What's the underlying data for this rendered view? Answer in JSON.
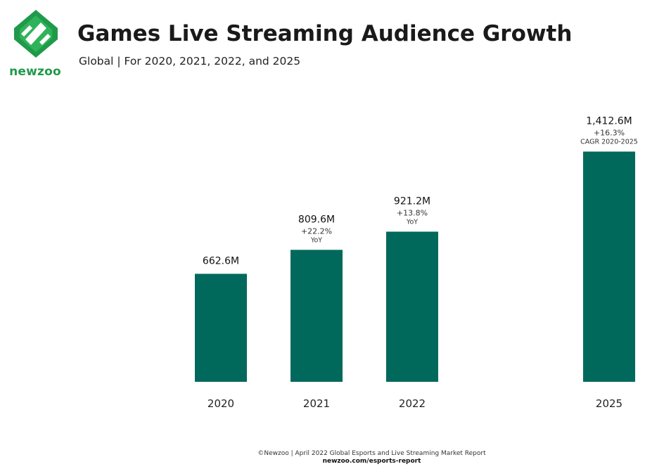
{
  "logo": {
    "text": "newzoo"
  },
  "header": {
    "title": "Games Live Streaming Audience Growth",
    "subtitle": "Global | For 2020, 2021, 2022, and 2025"
  },
  "colors": {
    "bar": "#00695c",
    "logo_green": "#1f9a4a"
  },
  "chart_data": {
    "type": "bar",
    "categories": [
      "2020",
      "2021",
      "2022",
      "2025"
    ],
    "values": [
      662.6,
      809.6,
      921.2,
      1412.6
    ],
    "value_labels": [
      "662.6M",
      "809.6M",
      "921.2M",
      "1,412.6M"
    ],
    "growth_labels": [
      "",
      "+22.2%",
      "+13.8%",
      "+16.3%"
    ],
    "growth_notes": [
      "",
      "YoY",
      "YoY",
      "CAGR 2020-2025"
    ],
    "ylim": [
      0,
      1500
    ],
    "grid": false,
    "legend": "none"
  },
  "footer": {
    "source": "©Newzoo | April 2022 Global Esports and Live Streaming Market Report",
    "url": "newzoo.com/esports-report"
  }
}
